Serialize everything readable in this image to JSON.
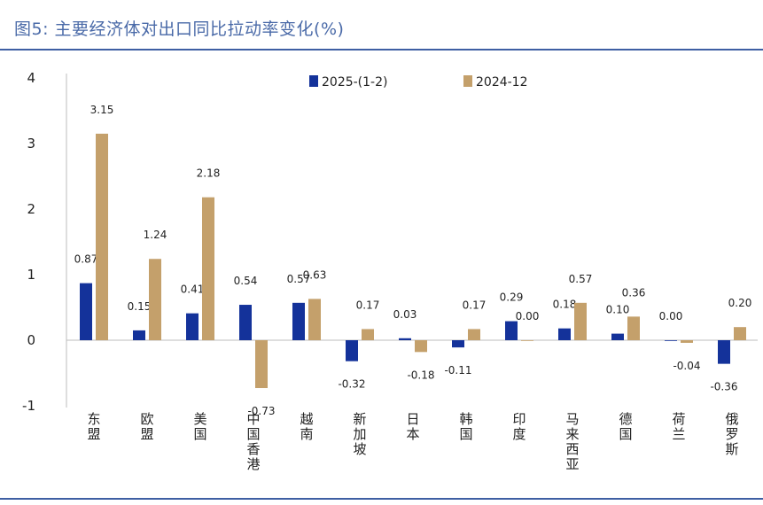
{
  "title": "图5: 主要经济体对出口同比拉动率变化(%)",
  "colors": {
    "series1": "#14329a",
    "series2": "#c4a06b",
    "rule": "#3e5fa3"
  },
  "chart_data": {
    "type": "bar",
    "title": "图5: 主要经济体对出口同比拉动率变化(%)",
    "categories": [
      "东盟",
      "欧盟",
      "美国",
      "中国香港",
      "越南",
      "新加坡",
      "日本",
      "韩国",
      "印度",
      "马来西亚",
      "德国",
      "荷兰",
      "俄罗斯"
    ],
    "series": [
      {
        "name": "2025-(1-2)",
        "values": [
          0.87,
          0.15,
          0.41,
          0.54,
          0.57,
          -0.32,
          0.03,
          -0.11,
          0.29,
          0.18,
          0.1,
          0.0,
          -0.36
        ],
        "labels": [
          "0.87",
          "0.15",
          "0.41",
          "0.54",
          "0.57",
          "-0.32",
          "0.03",
          "-0.11",
          "0.29",
          "0.18",
          "0.10",
          "0.00",
          "-0.36"
        ]
      },
      {
        "name": "2024-12",
        "values": [
          3.15,
          1.24,
          2.18,
          -0.73,
          0.63,
          0.17,
          -0.18,
          0.17,
          0.0,
          0.57,
          0.36,
          -0.04,
          0.2
        ],
        "labels": [
          "3.15",
          "1.24",
          "2.18",
          "-0.73",
          "0.63",
          "0.17",
          "-0.18",
          "0.17",
          "0.00",
          "0.57",
          "0.36",
          "-0.04",
          "0.20"
        ]
      }
    ],
    "yticks": [
      "4",
      "3",
      "2",
      "1",
      "0",
      "-1"
    ],
    "ylim": [
      -1,
      4
    ],
    "legend": "top-center",
    "grid": false
  }
}
